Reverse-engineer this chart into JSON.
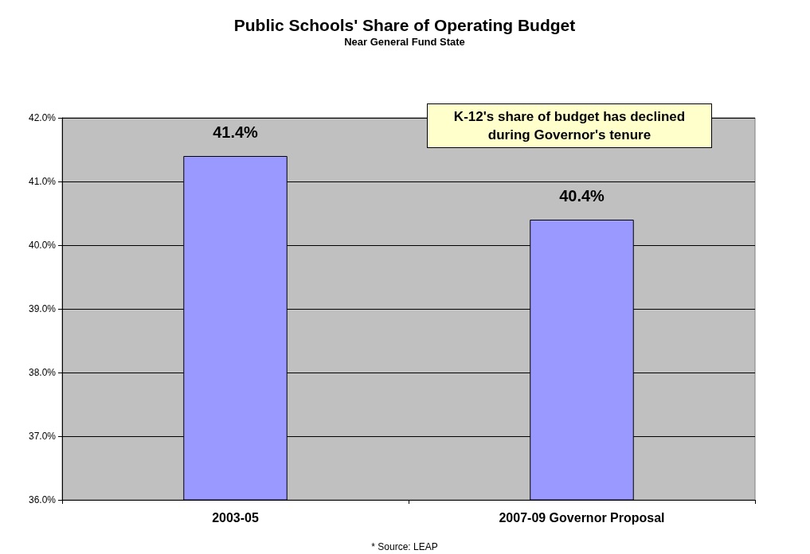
{
  "chart_data": {
    "type": "bar",
    "title": "Public Schools' Share of Operating Budget",
    "subtitle": "Near General Fund State",
    "categories": [
      "2003-05",
      "2007-09 Governor Proposal"
    ],
    "values": [
      41.4,
      40.4
    ],
    "color": "#9999ff",
    "value_labels": [
      "41.4%",
      "40.4%"
    ],
    "ylim": [
      36,
      42
    ],
    "yticks": [
      {
        "value": 36,
        "label": "36.0%"
      },
      {
        "value": 37,
        "label": "37.0%"
      },
      {
        "value": 38,
        "label": "38.0%"
      },
      {
        "value": 39,
        "label": "39.0%"
      },
      {
        "value": 40,
        "label": "40.0%"
      },
      {
        "value": 41,
        "label": "41.0%"
      },
      {
        "value": 42,
        "label": "42.0%"
      }
    ],
    "grid": "y",
    "annotations": [
      "K-12's share of budget has declined during Governor's tenure",
      "* Source: LEAP"
    ]
  }
}
